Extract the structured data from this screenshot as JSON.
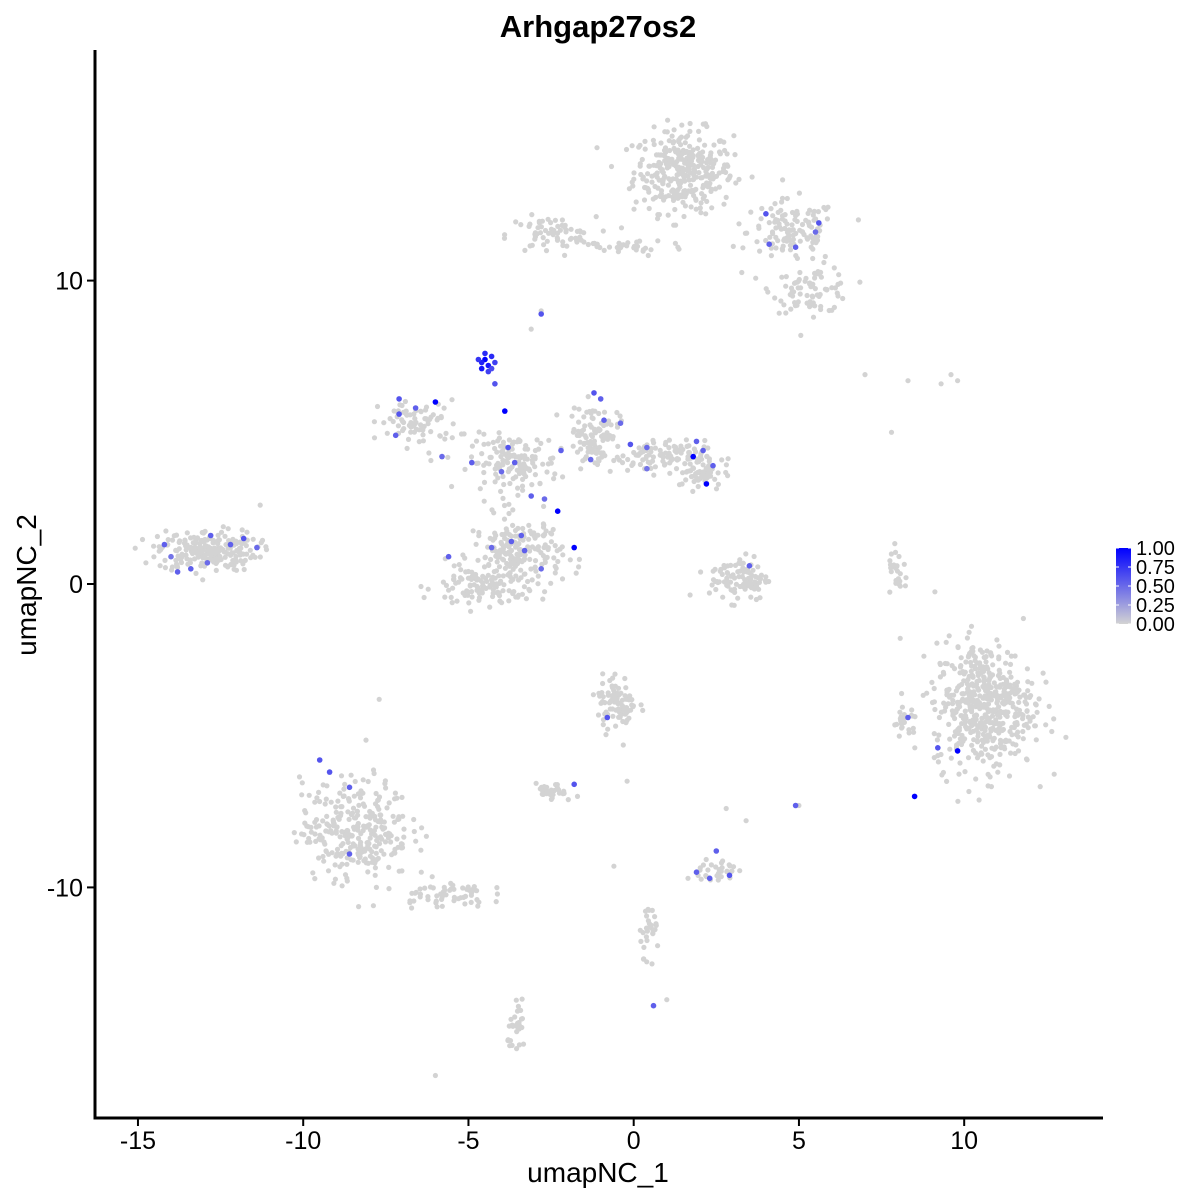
{
  "chart_data": {
    "type": "scatter",
    "title": "Arhgap27os2",
    "xlabel": "umapNC_1",
    "ylabel": "umapNC_2",
    "xlim": [
      -16.3,
      14.2
    ],
    "ylim": [
      -17.6,
      17.6
    ],
    "x_ticks": [
      -15,
      -10,
      -5,
      0,
      5,
      10
    ],
    "x_tick_labels": [
      "-15",
      "-10",
      "-5",
      "0",
      "5",
      "10"
    ],
    "y_ticks": [
      -10,
      0,
      10
    ],
    "y_tick_labels": [
      "-10",
      "0",
      "10"
    ],
    "grid": false,
    "legend_position": "right",
    "colors": {
      "low": "#d3d3d3",
      "high": "#0000ff",
      "axis": "#000000"
    },
    "color_scale": {
      "min": 0.0,
      "max": 1.0,
      "breaks": [
        1.0,
        0.75,
        0.5,
        0.25,
        0.0
      ],
      "labels": [
        "1.00",
        "0.75",
        "0.50",
        "0.25",
        "0.00"
      ]
    },
    "clusters": [
      {
        "center": [
          1.5,
          13.6
        ],
        "spread": [
          1.0,
          0.9
        ],
        "n": 330
      },
      {
        "center": [
          4.8,
          11.6
        ],
        "spread": [
          0.9,
          0.7
        ],
        "n": 120
      },
      {
        "center": [
          5.4,
          9.7
        ],
        "spread": [
          0.8,
          0.5
        ],
        "n": 80
      },
      {
        "center": [
          -2.5,
          11.5
        ],
        "spread": [
          0.9,
          0.4
        ],
        "n": 70
      },
      {
        "center": [
          -0.2,
          11.1
        ],
        "spread": [
          1.2,
          0.2
        ],
        "n": 30
      },
      {
        "center": [
          -12.9,
          1.1
        ],
        "spread": [
          1.0,
          0.45
        ],
        "n": 230
      },
      {
        "center": [
          -6.5,
          5.3
        ],
        "spread": [
          0.8,
          0.5
        ],
        "n": 80
      },
      {
        "center": [
          -3.6,
          4.0
        ],
        "spread": [
          0.9,
          0.6
        ],
        "n": 140
      },
      {
        "center": [
          -3.5,
          1.0
        ],
        "spread": [
          0.9,
          0.8
        ],
        "n": 200
      },
      {
        "center": [
          -4.7,
          -0.1
        ],
        "spread": [
          0.9,
          0.5
        ],
        "n": 100
      },
      {
        "center": [
          -1.2,
          5.0
        ],
        "spread": [
          0.5,
          0.6
        ],
        "n": 90
      },
      {
        "center": [
          0.5,
          4.2
        ],
        "spread": [
          1.1,
          0.35
        ],
        "n": 100
      },
      {
        "center": [
          2.0,
          3.7
        ],
        "spread": [
          0.5,
          0.4
        ],
        "n": 60
      },
      {
        "center": [
          3.2,
          0.2
        ],
        "spread": [
          0.6,
          0.5
        ],
        "n": 100
      },
      {
        "center": [
          10.6,
          -4.0
        ],
        "spread": [
          1.0,
          1.4
        ],
        "n": 520
      },
      {
        "center": [
          -8.4,
          -8.1
        ],
        "spread": [
          1.1,
          1.1
        ],
        "n": 300
      },
      {
        "center": [
          -5.8,
          -10.2
        ],
        "spread": [
          0.9,
          0.3
        ],
        "n": 60
      },
      {
        "center": [
          -0.5,
          -3.9
        ],
        "spread": [
          0.4,
          0.6
        ],
        "n": 90
      },
      {
        "center": [
          -2.5,
          -6.9
        ],
        "spread": [
          0.3,
          0.2
        ],
        "n": 30
      },
      {
        "center": [
          2.5,
          -9.5
        ],
        "spread": [
          0.4,
          0.3
        ],
        "n": 35
      },
      {
        "center": [
          0.5,
          -11.3
        ],
        "spread": [
          0.2,
          0.6
        ],
        "n": 30
      },
      {
        "center": [
          -3.5,
          -14.7
        ],
        "spread": [
          0.2,
          0.5
        ],
        "n": 30
      },
      {
        "center": [
          8.0,
          0.4
        ],
        "spread": [
          0.2,
          0.5
        ],
        "n": 25
      },
      {
        "center": [
          8.2,
          -4.6
        ],
        "spread": [
          0.3,
          0.4
        ],
        "n": 25
      }
    ],
    "background_points": [
      [
        -2.8,
        9.0
      ],
      [
        -3.1,
        8.4
      ],
      [
        7.0,
        6.9
      ],
      [
        8.3,
        6.7
      ],
      [
        9.6,
        6.9
      ],
      [
        9.8,
        6.7
      ],
      [
        9.3,
        6.6
      ],
      [
        -0.2,
        -6.5
      ],
      [
        -1.7,
        -7.0
      ],
      [
        2.8,
        -7.4
      ],
      [
        5.0,
        -7.3
      ],
      [
        3.4,
        -7.8
      ],
      [
        -6.0,
        -16.2
      ],
      [
        1.0,
        -13.7
      ],
      [
        -0.6,
        -9.3
      ],
      [
        -7.7,
        -3.8
      ],
      [
        7.8,
        5.0
      ],
      [
        6.8,
        12.0
      ],
      [
        -11.3,
        2.6
      ]
    ],
    "highlight_points": [
      {
        "x": -4.5,
        "y": 7.4,
        "v": 1.0
      },
      {
        "x": -4.4,
        "y": 7.2,
        "v": 0.9
      },
      {
        "x": -4.6,
        "y": 7.3,
        "v": 0.85
      },
      {
        "x": -4.3,
        "y": 7.5,
        "v": 0.8
      },
      {
        "x": -4.7,
        "y": 7.4,
        "v": 0.75
      },
      {
        "x": -4.4,
        "y": 7.0,
        "v": 0.7
      },
      {
        "x": -4.5,
        "y": 7.6,
        "v": 0.8
      },
      {
        "x": -4.2,
        "y": 7.3,
        "v": 0.7
      },
      {
        "x": -4.6,
        "y": 7.1,
        "v": 0.9
      },
      {
        "x": -4.3,
        "y": 7.1,
        "v": 0.65
      },
      {
        "x": -4.2,
        "y": 6.6,
        "v": 0.6
      },
      {
        "x": -3.9,
        "y": 5.7,
        "v": 1.0
      },
      {
        "x": -6.0,
        "y": 6.0,
        "v": 1.0
      },
      {
        "x": -7.1,
        "y": 6.1,
        "v": 0.6
      },
      {
        "x": -7.1,
        "y": 5.6,
        "v": 0.6
      },
      {
        "x": -6.6,
        "y": 5.8,
        "v": 0.55
      },
      {
        "x": -7.2,
        "y": 4.9,
        "v": 0.55
      },
      {
        "x": -5.8,
        "y": 4.2,
        "v": 0.5
      },
      {
        "x": -4.9,
        "y": 4.0,
        "v": 0.55
      },
      {
        "x": -3.8,
        "y": 4.5,
        "v": 0.6
      },
      {
        "x": -3.6,
        "y": 4.0,
        "v": 0.55
      },
      {
        "x": -4.0,
        "y": 3.7,
        "v": 0.5
      },
      {
        "x": -2.2,
        "y": 4.4,
        "v": 0.55
      },
      {
        "x": -1.2,
        "y": 6.3,
        "v": 0.6
      },
      {
        "x": -1.0,
        "y": 6.1,
        "v": 0.55
      },
      {
        "x": -0.9,
        "y": 5.4,
        "v": 0.55
      },
      {
        "x": -0.4,
        "y": 5.3,
        "v": 0.5
      },
      {
        "x": -0.1,
        "y": 4.6,
        "v": 0.6
      },
      {
        "x": 0.4,
        "y": 4.5,
        "v": 0.5
      },
      {
        "x": 1.9,
        "y": 4.7,
        "v": 0.55
      },
      {
        "x": 1.8,
        "y": 4.2,
        "v": 1.0
      },
      {
        "x": 2.1,
        "y": 4.4,
        "v": 0.55
      },
      {
        "x": 2.4,
        "y": 3.9,
        "v": 0.55
      },
      {
        "x": 2.2,
        "y": 3.3,
        "v": 1.0
      },
      {
        "x": 0.4,
        "y": 3.8,
        "v": 0.45
      },
      {
        "x": -1.3,
        "y": 4.1,
        "v": 0.5
      },
      {
        "x": -2.3,
        "y": 2.4,
        "v": 1.0
      },
      {
        "x": -1.8,
        "y": 1.2,
        "v": 1.0
      },
      {
        "x": -3.1,
        "y": 2.9,
        "v": 0.55
      },
      {
        "x": -2.7,
        "y": 2.8,
        "v": 0.5
      },
      {
        "x": -3.4,
        "y": 1.6,
        "v": 0.55
      },
      {
        "x": -3.3,
        "y": 1.1,
        "v": 0.55
      },
      {
        "x": -3.7,
        "y": 1.4,
        "v": 0.55
      },
      {
        "x": -4.3,
        "y": 1.2,
        "v": 0.5
      },
      {
        "x": -2.8,
        "y": 0.5,
        "v": 0.5
      },
      {
        "x": -5.6,
        "y": 0.9,
        "v": 0.55
      },
      {
        "x": -12.8,
        "y": 1.6,
        "v": 0.55
      },
      {
        "x": -12.2,
        "y": 1.3,
        "v": 0.55
      },
      {
        "x": -11.8,
        "y": 1.5,
        "v": 0.6
      },
      {
        "x": -11.4,
        "y": 1.2,
        "v": 0.5
      },
      {
        "x": -14.2,
        "y": 1.3,
        "v": 0.55
      },
      {
        "x": -13.8,
        "y": 0.4,
        "v": 0.55
      },
      {
        "x": -13.4,
        "y": 0.5,
        "v": 0.55
      },
      {
        "x": -12.9,
        "y": 0.7,
        "v": 0.5
      },
      {
        "x": -14.0,
        "y": 0.9,
        "v": 0.45
      },
      {
        "x": -2.8,
        "y": 8.9,
        "v": 0.6
      },
      {
        "x": 4.0,
        "y": 12.2,
        "v": 0.6
      },
      {
        "x": 5.6,
        "y": 11.9,
        "v": 0.6
      },
      {
        "x": 4.9,
        "y": 11.1,
        "v": 0.55
      },
      {
        "x": 4.1,
        "y": 11.2,
        "v": 0.55
      },
      {
        "x": 5.5,
        "y": 11.6,
        "v": 0.5
      },
      {
        "x": 3.5,
        "y": 0.6,
        "v": 0.55
      },
      {
        "x": 9.8,
        "y": -5.5,
        "v": 1.0
      },
      {
        "x": 9.2,
        "y": -5.4,
        "v": 0.6
      },
      {
        "x": 8.5,
        "y": -7.0,
        "v": 1.0
      },
      {
        "x": 8.3,
        "y": -4.4,
        "v": 0.55
      },
      {
        "x": -0.8,
        "y": -4.4,
        "v": 0.6
      },
      {
        "x": -1.8,
        "y": -6.6,
        "v": 0.6
      },
      {
        "x": -9.5,
        "y": -5.8,
        "v": 0.6
      },
      {
        "x": -9.2,
        "y": -6.2,
        "v": 0.6
      },
      {
        "x": -8.6,
        "y": -6.7,
        "v": 0.55
      },
      {
        "x": -8.6,
        "y": -8.9,
        "v": 0.55
      },
      {
        "x": 1.9,
        "y": -9.5,
        "v": 0.55
      },
      {
        "x": 2.5,
        "y": -8.8,
        "v": 0.55
      },
      {
        "x": 2.9,
        "y": -9.6,
        "v": 0.6
      },
      {
        "x": 2.3,
        "y": -9.7,
        "v": 0.55
      },
      {
        "x": 0.6,
        "y": -13.9,
        "v": 0.55
      },
      {
        "x": 4.9,
        "y": -7.3,
        "v": 0.55
      }
    ]
  }
}
